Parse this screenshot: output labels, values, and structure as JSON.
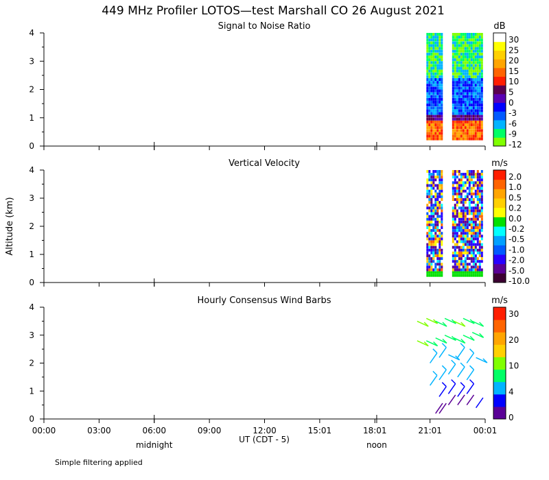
{
  "title": "449 MHz Profiler LOTOS—test Marshall CO 26 August 2021",
  "axis": {
    "ylabel": "Altitude (km)",
    "xlabel": "UT  (CDT - 5)",
    "x_ticks": [
      "00:00",
      "03:00",
      "06:00",
      "09:00",
      "12:00",
      "15:01",
      "18:01",
      "21:01",
      "00:01"
    ],
    "y_ticks": [
      "0",
      "1",
      "2",
      "3",
      "4"
    ],
    "marker_labels": [
      {
        "label": "midnight",
        "hour": 6.0
      },
      {
        "label": "noon",
        "hour": 18.1
      }
    ]
  },
  "footer_note": "Simple filtering applied",
  "colors": {
    "snr": [
      "#80ff00",
      "#00ff66",
      "#00b4ff",
      "#005aff",
      "#0000ff",
      "#5a00b4",
      "#5a0050",
      "#ff1e00",
      "#ff6400",
      "#ffa500",
      "#ffd000",
      "#ffff00",
      "#ffffff"
    ],
    "velocity": [
      "#3c0032",
      "#5a0096",
      "#2800ff",
      "#005aff",
      "#00a0ff",
      "#00ffff",
      "#00e000",
      "#ffff00",
      "#ffd000",
      "#ffa500",
      "#ff6400",
      "#ff1e00"
    ],
    "wind": [
      "#5a0096",
      "#0000ff",
      "#00b4ff",
      "#00ff66",
      "#80ff00",
      "#ffd000",
      "#ffa500",
      "#ff6400",
      "#ff1e00"
    ]
  },
  "chart_data": [
    {
      "type": "heatmap",
      "title": "Signal to Noise Ratio",
      "unit": "dB",
      "ylim": [
        0,
        4
      ],
      "colorbar_labels": [
        "30",
        "25",
        "20",
        "15",
        "10",
        "5",
        "0",
        "-3",
        "-6",
        "-9",
        "-12"
      ],
      "data_window_hours": [
        [
          20.8,
          21.6
        ],
        [
          22.2,
          23.8
        ]
      ],
      "layers": [
        {
          "alt_range": [
            0.2,
            0.8
          ],
          "snr_db": [
            5,
            20
          ]
        },
        {
          "alt_range": [
            0.8,
            1.0
          ],
          "snr_db": [
            0,
            5
          ]
        },
        {
          "alt_range": [
            1.0,
            2.4
          ],
          "snr_db": [
            -6,
            0
          ]
        },
        {
          "alt_range": [
            2.4,
            4.0
          ],
          "snr_db": [
            -12,
            -6
          ]
        }
      ]
    },
    {
      "type": "heatmap",
      "title": "Vertical Velocity",
      "unit": "m/s",
      "ylim": [
        0,
        4
      ],
      "colorbar_labels": [
        "2.0",
        "1.0",
        "0.5",
        "0.2",
        "0.0",
        "-0.2",
        "-0.5",
        "-1.0",
        "-2.0",
        "-5.0",
        "-10.0"
      ],
      "data_window_hours": [
        [
          20.8,
          21.6
        ],
        [
          22.2,
          23.8
        ]
      ],
      "layers": [
        {
          "alt_range": [
            0.2,
            0.4
          ],
          "velocity_ms": [
            -0.2,
            0.0
          ]
        },
        {
          "alt_range": [
            1.2,
            4.0
          ],
          "velocity_ms": [
            -5.0,
            0.5
          ]
        }
      ]
    },
    {
      "type": "scatter",
      "title": "Hourly Consensus Wind Barbs",
      "unit": "m/s",
      "ylim": [
        0,
        4
      ],
      "colorbar_labels": [
        "30",
        "20",
        "10",
        "4",
        "0"
      ],
      "x": [
        21.3,
        21.5,
        22.0,
        22.5,
        23.0,
        23.5,
        21.5,
        22.0,
        22.5,
        23.0,
        21.0,
        21.5,
        22.0,
        22.5,
        23.0,
        21.0,
        21.5,
        22.0,
        22.5,
        23.0,
        23.5,
        20.3,
        20.8,
        21.3,
        21.8,
        22.3,
        22.8,
        23.3,
        20.3,
        20.8,
        21.3,
        21.8,
        22.3,
        22.8,
        23.3
      ],
      "y": [
        0.2,
        0.2,
        0.5,
        0.5,
        0.5,
        0.4,
        0.8,
        0.9,
        0.8,
        0.9,
        1.2,
        1.4,
        1.6,
        1.5,
        1.4,
        2.0,
        2.2,
        2.3,
        2.2,
        2.0,
        2.2,
        2.8,
        2.8,
        2.9,
        3.0,
        2.9,
        3.0,
        3.1,
        3.5,
        3.6,
        3.5,
        3.6,
        3.5,
        3.6,
        3.5
      ],
      "speed_ms": [
        3,
        3,
        2,
        2,
        1,
        4,
        6,
        6,
        5,
        6,
        8,
        8,
        9,
        8,
        8,
        9,
        9,
        10,
        9,
        9,
        10,
        14,
        13,
        13,
        12,
        13,
        12,
        11,
        14,
        15,
        13,
        13,
        14,
        12,
        12
      ]
    }
  ]
}
